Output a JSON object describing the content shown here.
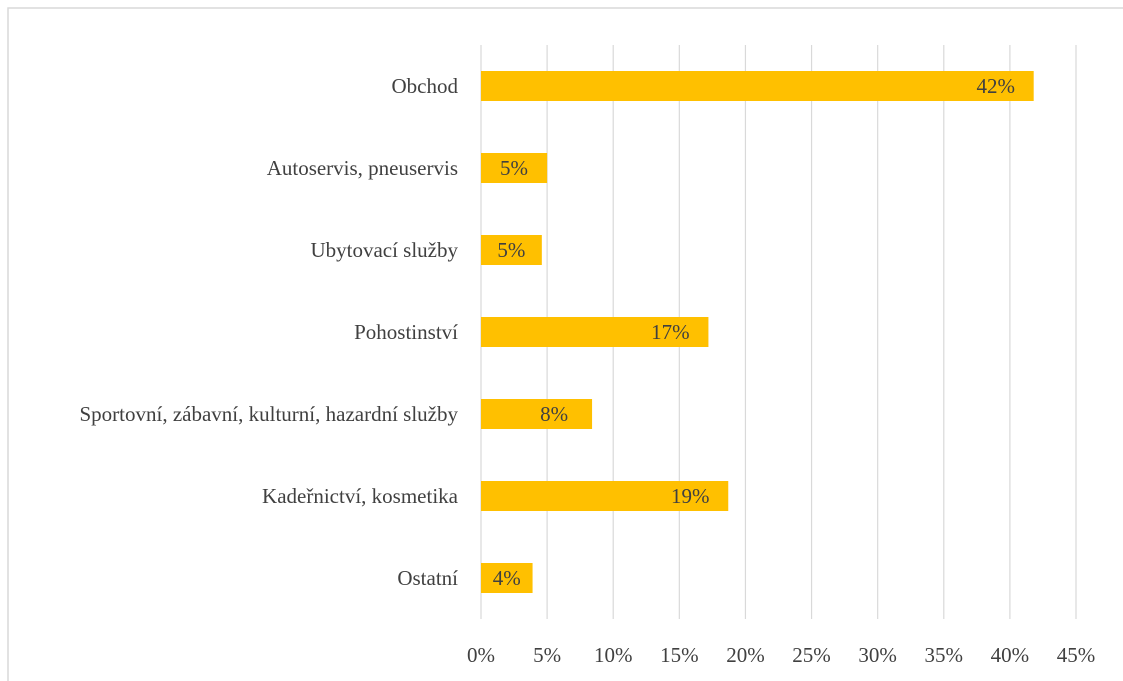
{
  "chart_data": {
    "type": "barh",
    "categories": [
      "Obchod",
      "Autoservis, pneuservis",
      "Ubytovací služby",
      "Pohostinství",
      "Sportovní, zábavní, kulturní, hazardní služby",
      "Kadeřnictví, kosmetika",
      "Ostatní"
    ],
    "values": [
      41.8,
      5,
      4.6,
      17.2,
      8.4,
      18.7,
      3.9
    ],
    "value_labels": [
      "42%",
      "5%",
      "5%",
      "17%",
      "8%",
      "19%",
      "4%"
    ],
    "color": "#FFC000",
    "xlim": [
      0,
      45
    ],
    "xticks": [
      {
        "value": 0,
        "label": "0%"
      },
      {
        "value": 5,
        "label": "5%"
      },
      {
        "value": 10,
        "label": "10%"
      },
      {
        "value": 15,
        "label": "15%"
      },
      {
        "value": 20,
        "label": "20%"
      },
      {
        "value": 25,
        "label": "25%"
      },
      {
        "value": 30,
        "label": "30%"
      },
      {
        "value": 35,
        "label": "35%"
      },
      {
        "value": 40,
        "label": "40%"
      },
      {
        "value": 45,
        "label": "45%"
      }
    ],
    "grid": true
  }
}
